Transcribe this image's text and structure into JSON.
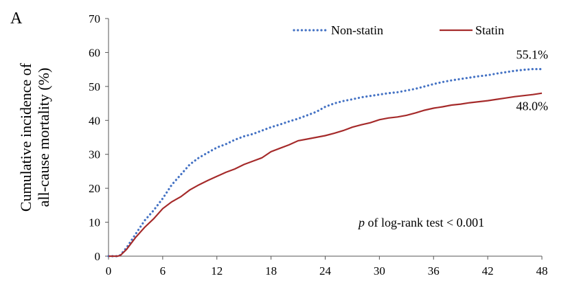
{
  "panel_label": "A",
  "annotation": {
    "p_symbol": "p",
    "text": " of log-rank test < 0.001"
  },
  "chart_data": {
    "type": "line",
    "title": "",
    "xlabel": "",
    "ylabel_lines": [
      "Cumulative incidence of",
      "all-cause mortality (%)"
    ],
    "xlim": [
      0,
      48
    ],
    "ylim": [
      0,
      70
    ],
    "x_ticks": [
      0,
      6,
      12,
      18,
      24,
      30,
      36,
      42,
      48
    ],
    "y_ticks": [
      0,
      10,
      20,
      30,
      40,
      50,
      60,
      70
    ],
    "grid": false,
    "legend_position": "top",
    "series": [
      {
        "name": "Non-statin",
        "color": "#4472C4",
        "style": "dotted",
        "end_label": "55.1%",
        "x": [
          0,
          1,
          1.3,
          2,
          3,
          4,
          5,
          6,
          7,
          8,
          9,
          10,
          11,
          12,
          13,
          14,
          15,
          16,
          17,
          18,
          19,
          20,
          21,
          22,
          23,
          24,
          25,
          26,
          27,
          28,
          29,
          30,
          31,
          32,
          33,
          34,
          35,
          36,
          37,
          38,
          39,
          40,
          41,
          42,
          43,
          44,
          45,
          46,
          47,
          48
        ],
        "y": [
          0,
          0,
          0.3,
          2.5,
          6.5,
          10.5,
          13.5,
          17,
          21,
          24,
          27,
          29,
          30.5,
          32,
          33,
          34.3,
          35.3,
          36,
          37,
          38,
          38.8,
          39.7,
          40.5,
          41.5,
          42.5,
          44,
          45,
          45.7,
          46.2,
          46.8,
          47.2,
          47.6,
          48,
          48.3,
          48.8,
          49.3,
          50,
          50.7,
          51.3,
          51.8,
          52.2,
          52.6,
          53,
          53.3,
          53.8,
          54.2,
          54.6,
          54.9,
          55.1,
          55.1
        ]
      },
      {
        "name": "Statin",
        "color": "#A52A2A",
        "style": "solid",
        "end_label": "48.0%",
        "x": [
          0,
          1,
          1.3,
          2,
          3,
          4,
          5,
          6,
          7,
          8,
          9,
          10,
          11,
          12,
          13,
          14,
          15,
          16,
          17,
          18,
          19,
          20,
          21,
          22,
          23,
          24,
          25,
          26,
          27,
          28,
          29,
          30,
          31,
          32,
          33,
          34,
          35,
          36,
          37,
          38,
          39,
          40,
          41,
          42,
          43,
          44,
          45,
          46,
          47,
          48
        ],
        "y": [
          0,
          0,
          0.2,
          2,
          5.5,
          8.5,
          11,
          14,
          16,
          17.5,
          19.5,
          21,
          22.3,
          23.5,
          24.7,
          25.7,
          27,
          28,
          29,
          30.8,
          31.8,
          32.8,
          34,
          34.5,
          35,
          35.5,
          36.2,
          37,
          38,
          38.7,
          39.3,
          40.2,
          40.7,
          41,
          41.5,
          42.2,
          43,
          43.6,
          44,
          44.5,
          44.8,
          45.2,
          45.5,
          45.8,
          46.2,
          46.6,
          47,
          47.3,
          47.6,
          48
        ]
      }
    ]
  }
}
